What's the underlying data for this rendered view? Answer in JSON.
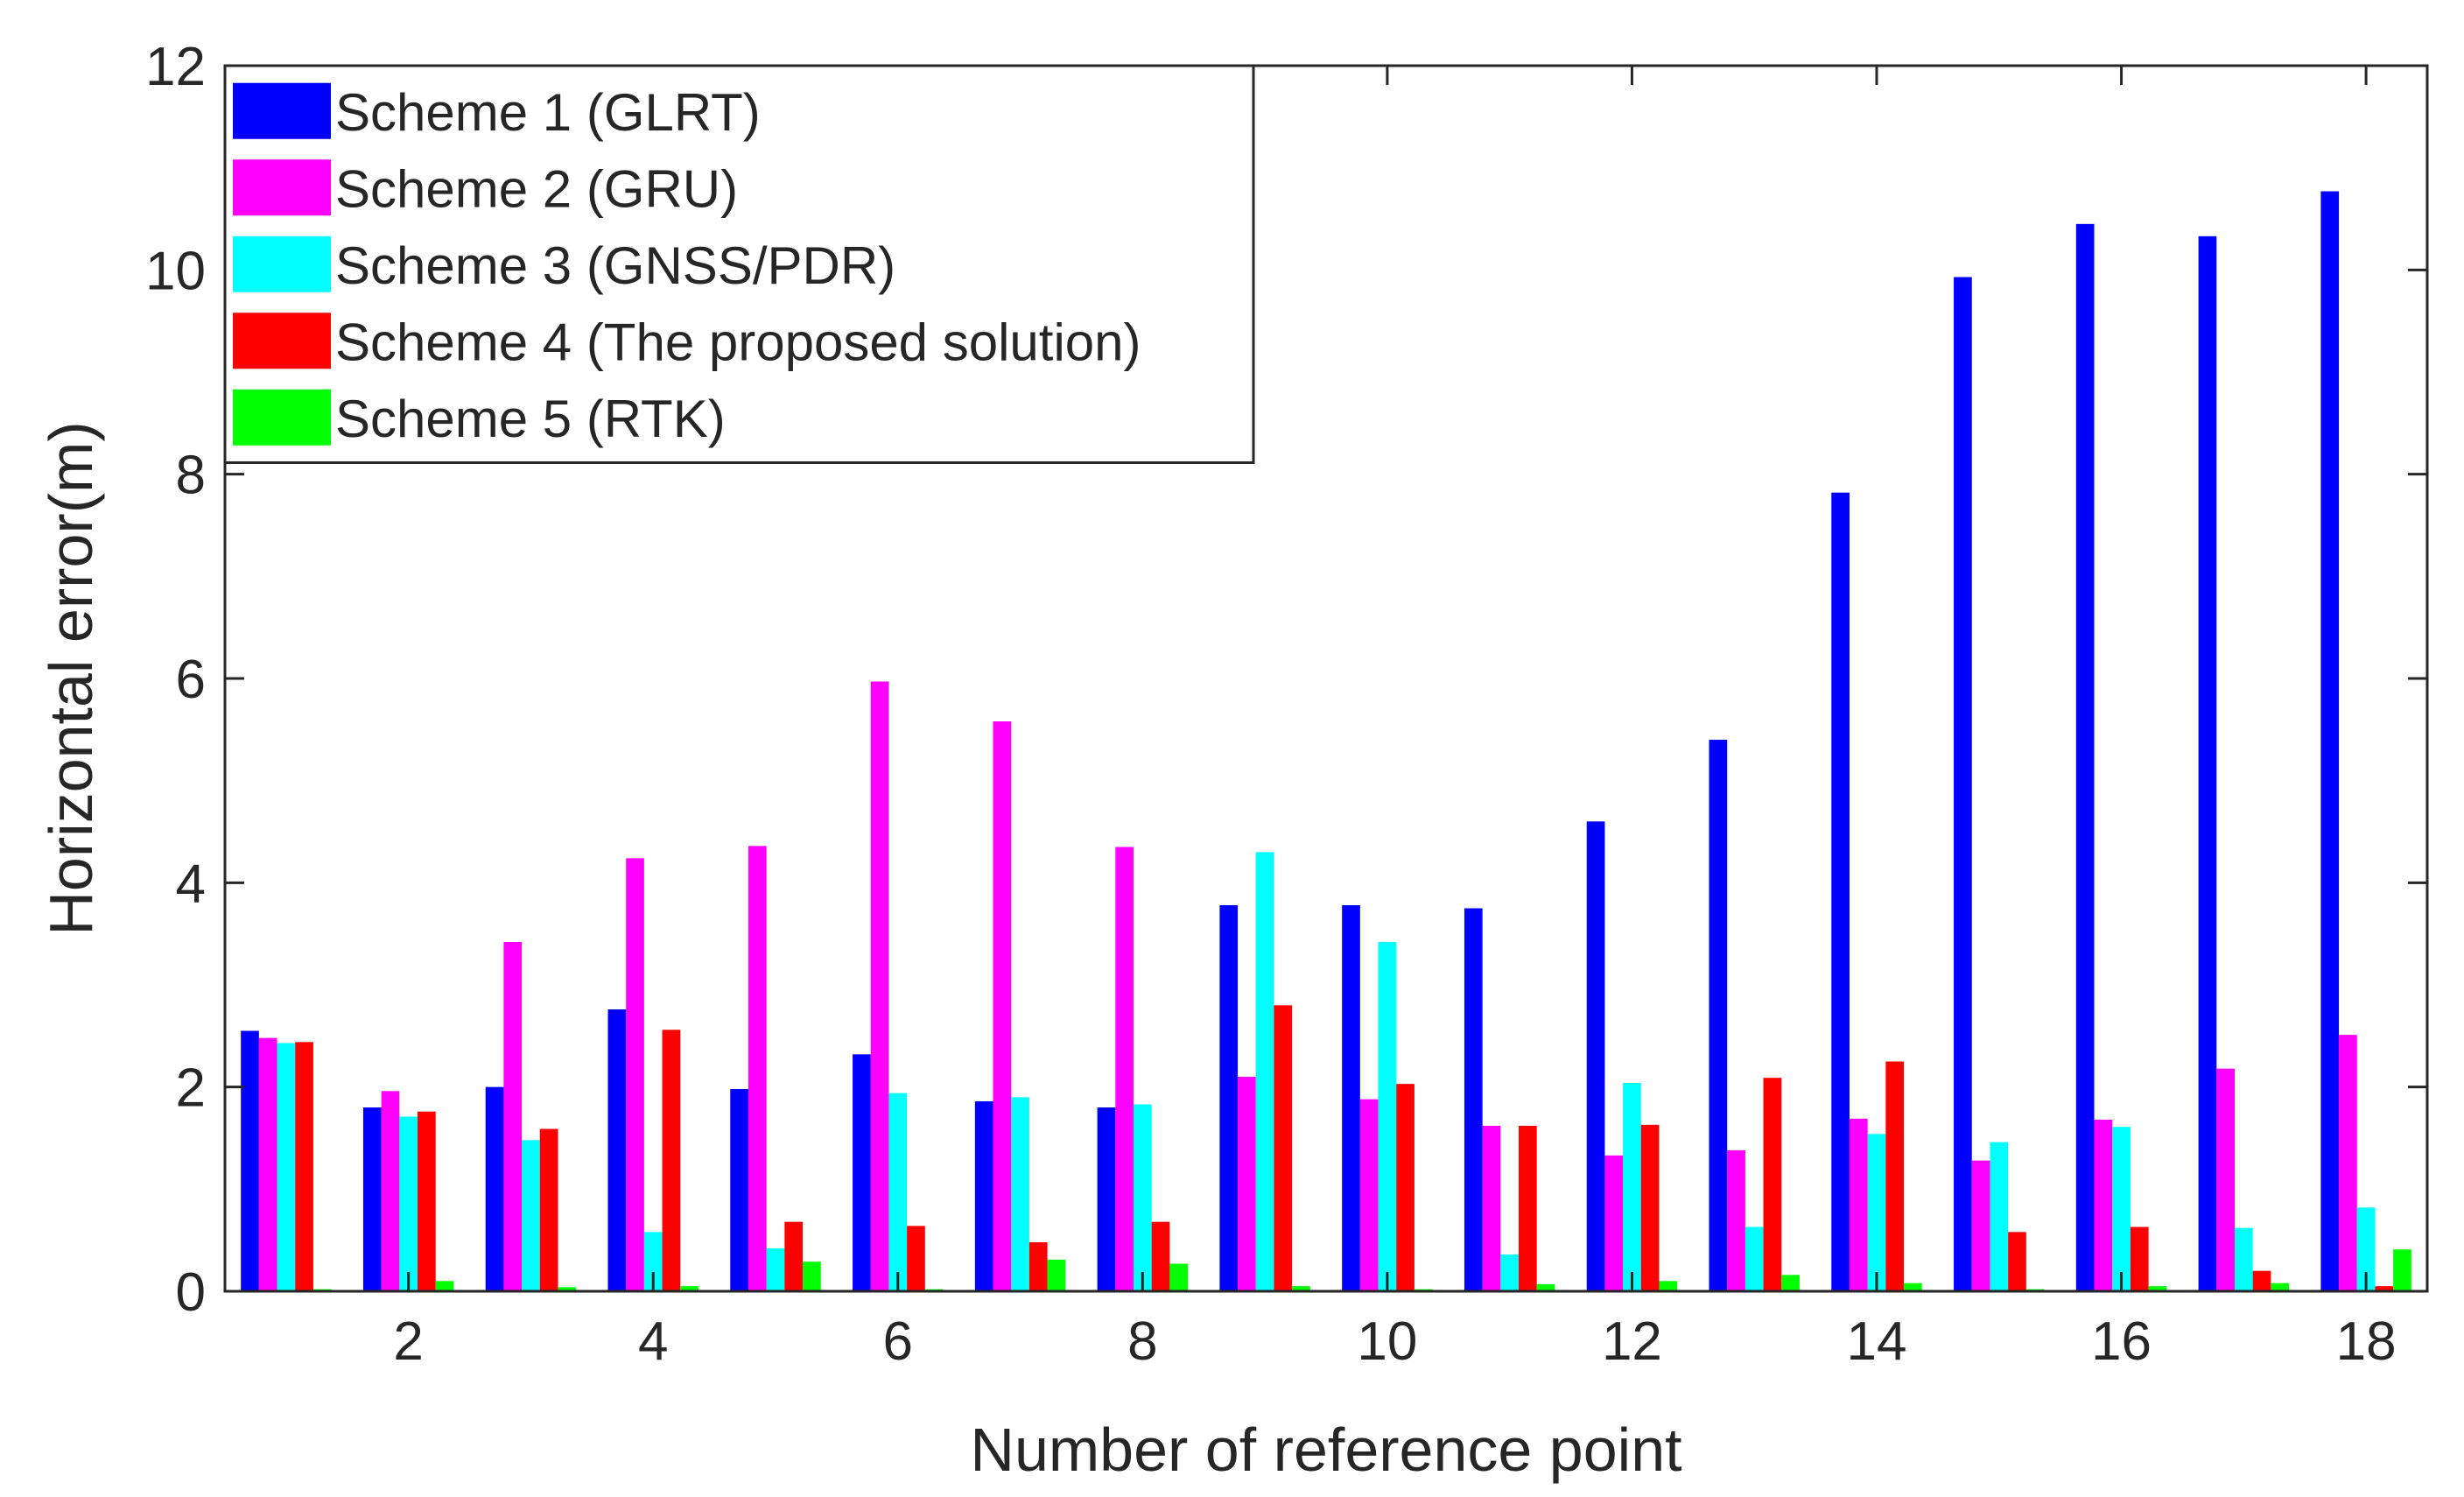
{
  "chart_data": {
    "type": "bar",
    "title": "",
    "xlabel": "Number of reference point",
    "ylabel": "Horizontal error(m)",
    "xlim": [
      0.5,
      18.5
    ],
    "ylim": [
      0,
      12
    ],
    "x": [
      1,
      2,
      3,
      4,
      5,
      6,
      7,
      8,
      9,
      10,
      11,
      12,
      13,
      14,
      15,
      16,
      17,
      18
    ],
    "xticks": [
      "2",
      "4",
      "6",
      "8",
      "10",
      "12",
      "14",
      "16",
      "18"
    ],
    "yticks": [
      "0",
      "2",
      "4",
      "6",
      "8",
      "10",
      "12"
    ],
    "legend_position": "top-left",
    "series": [
      {
        "name": "Scheme 1 (GLRT)",
        "color": "#0000ff",
        "values": [
          2.55,
          1.8,
          2.0,
          2.76,
          1.98,
          2.32,
          1.86,
          1.8,
          3.78,
          3.78,
          3.75,
          4.6,
          5.4,
          7.82,
          9.93,
          10.45,
          10.33,
          10.77
        ]
      },
      {
        "name": "Scheme 2 (GRU)",
        "color": "#ff00ff",
        "values": [
          2.48,
          1.96,
          3.42,
          4.24,
          4.36,
          5.97,
          5.58,
          4.35,
          2.1,
          1.88,
          1.62,
          1.33,
          1.38,
          1.69,
          1.28,
          1.68,
          2.18,
          2.51
        ]
      },
      {
        "name": "Scheme 3 (GNSS/PDR)",
        "color": "#00ffff",
        "values": [
          2.43,
          1.71,
          1.48,
          0.58,
          0.42,
          1.94,
          1.9,
          1.83,
          4.3,
          3.42,
          0.36,
          2.04,
          0.63,
          1.54,
          1.46,
          1.61,
          0.62,
          0.82
        ]
      },
      {
        "name": "Scheme 4 (The proposed solution)",
        "color": "#ff0000",
        "values": [
          2.44,
          1.76,
          1.59,
          2.56,
          0.68,
          0.64,
          0.48,
          0.68,
          2.8,
          2.03,
          1.62,
          1.63,
          2.09,
          2.25,
          0.58,
          0.63,
          0.2,
          0.05
        ]
      },
      {
        "name": "Scheme 5 (RTK)",
        "color": "#00ff00",
        "values": [
          0.02,
          0.1,
          0.04,
          0.05,
          0.29,
          0.02,
          0.31,
          0.27,
          0.05,
          0.02,
          0.07,
          0.1,
          0.16,
          0.08,
          0.02,
          0.05,
          0.08,
          0.41
        ]
      }
    ]
  }
}
